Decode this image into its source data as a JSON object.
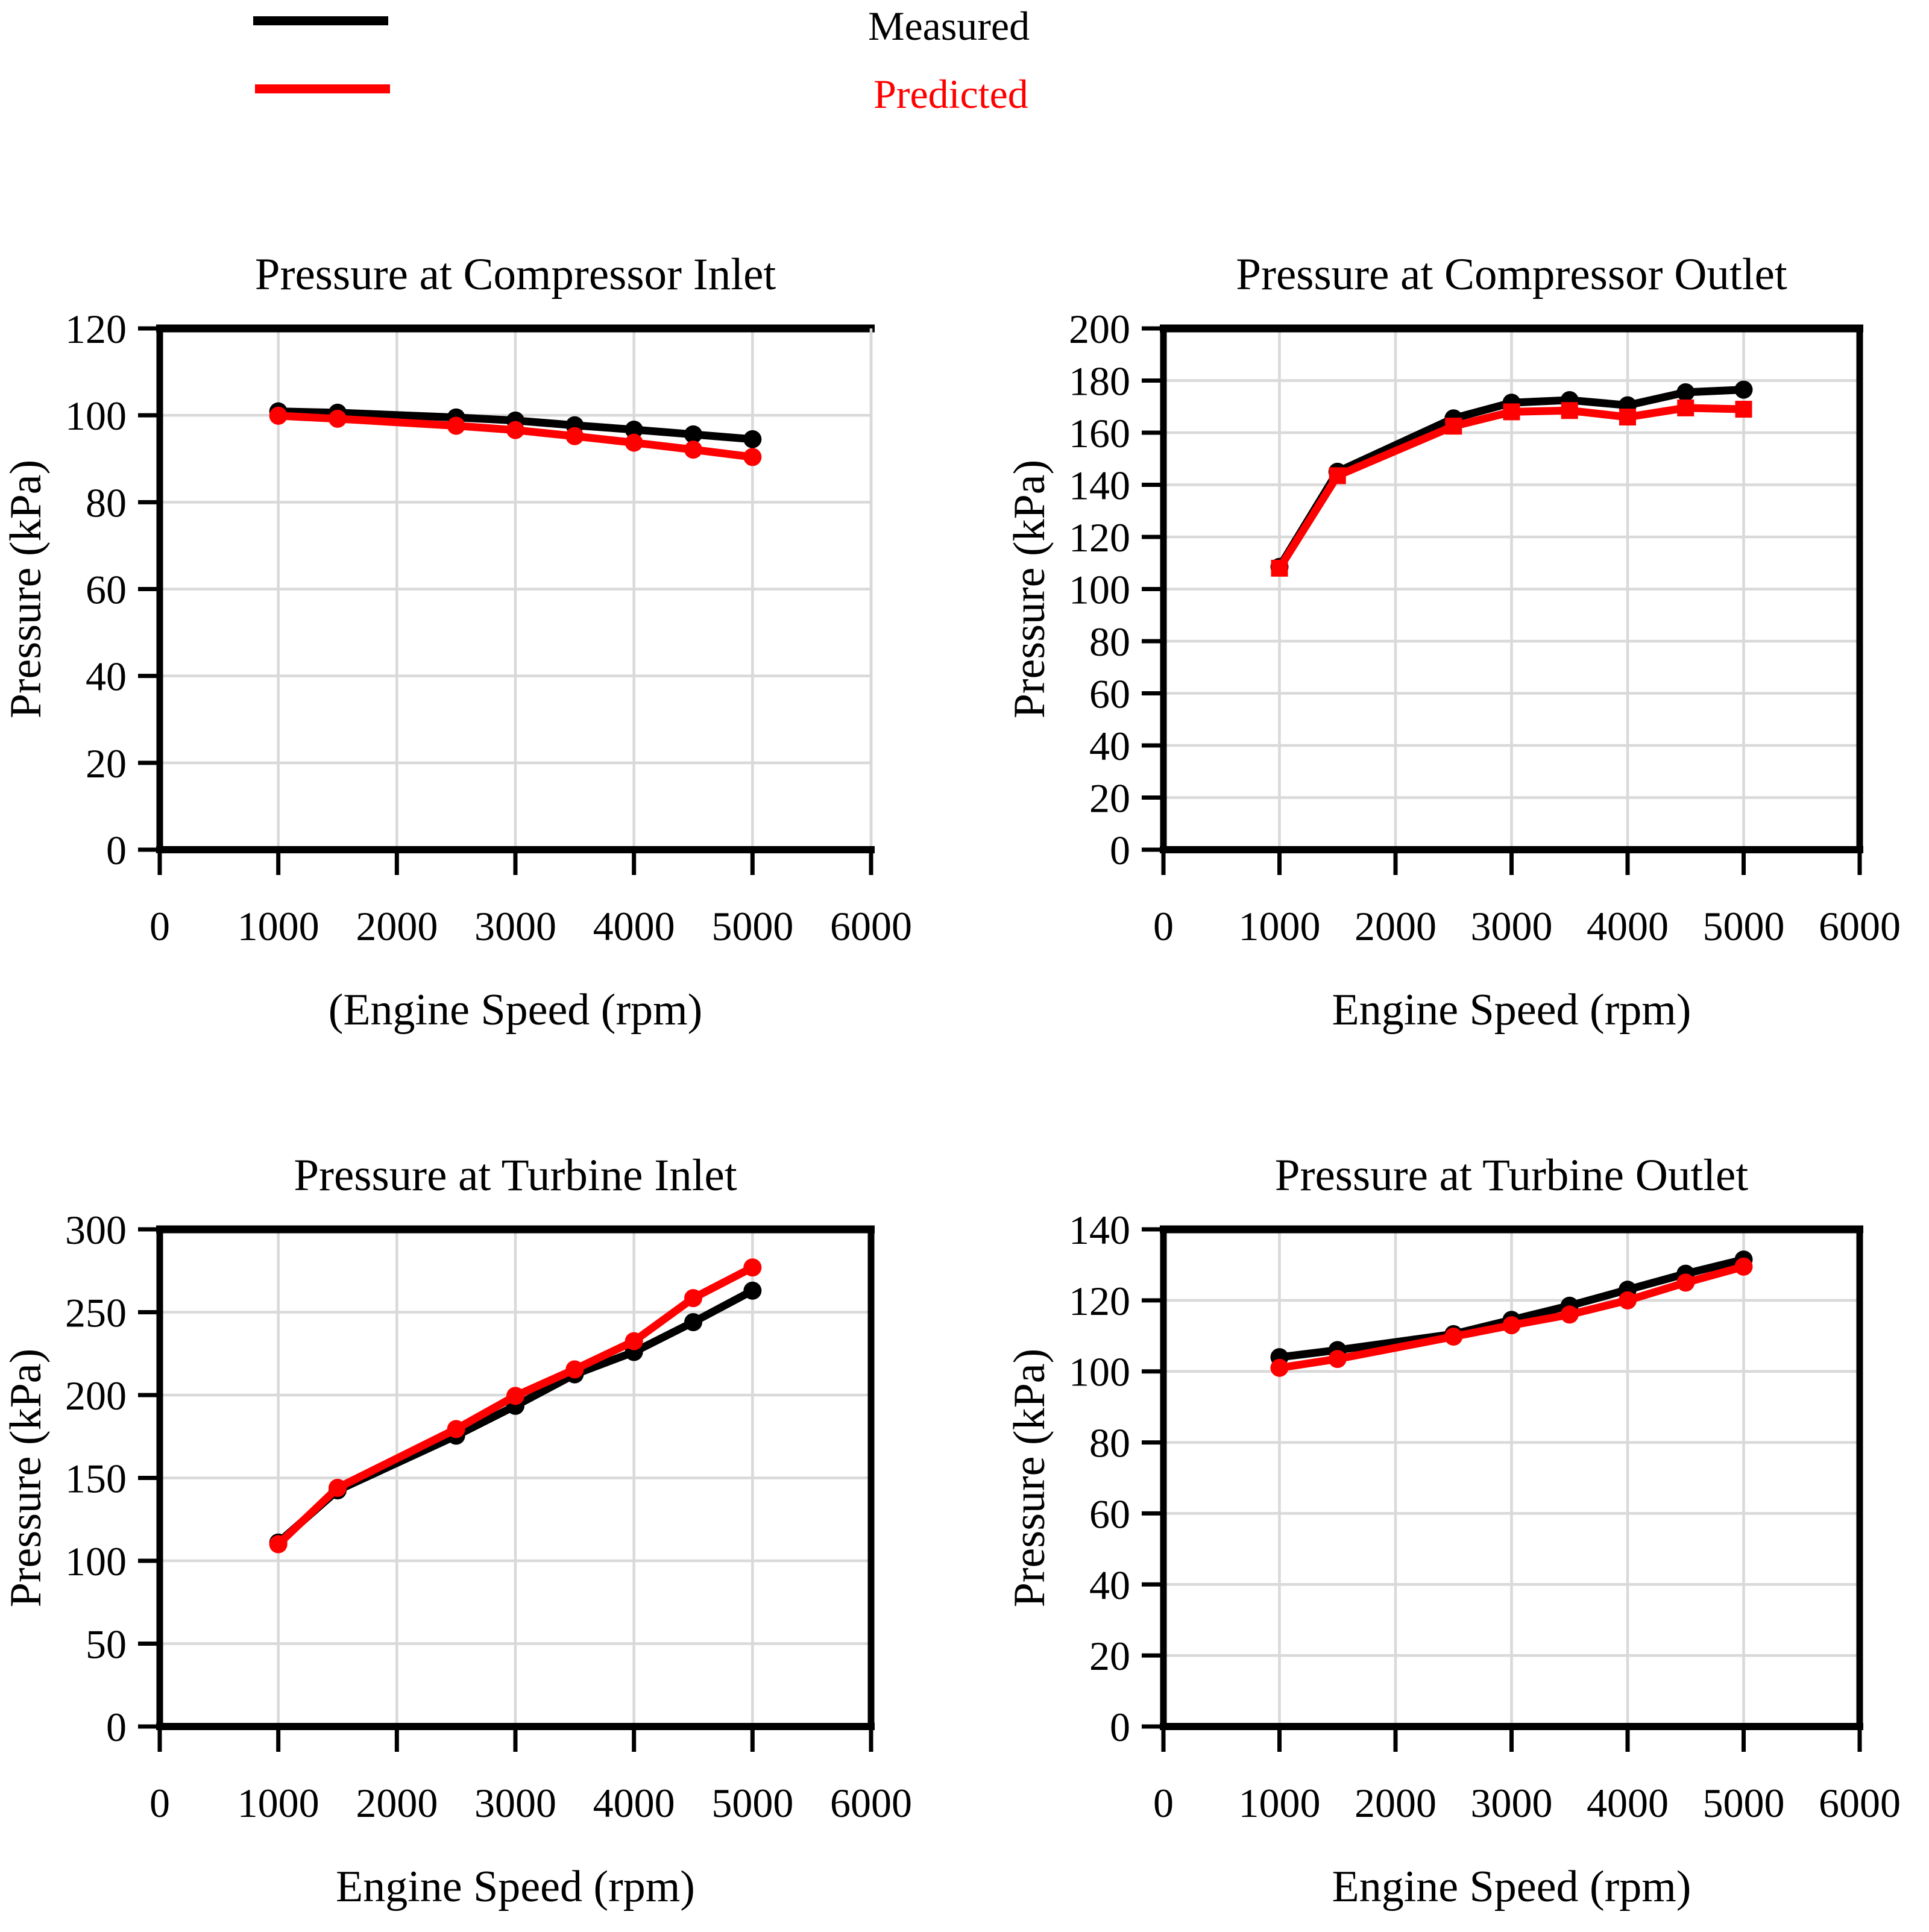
{
  "figure": {
    "background": "#FFFFFF",
    "grid_color": "#D9D9D9",
    "axis_color": "#000000"
  },
  "legend": {
    "items": [
      {
        "name": "measured",
        "label": "Measured",
        "color": "#000000"
      },
      {
        "name": "predicted",
        "label": "Predicted",
        "color": "#FF0000"
      }
    ]
  },
  "chart_data": [
    {
      "type": "line",
      "title": "Pressure at Compressor Inlet",
      "xlabel": "(Engine Speed (rpm)",
      "ylabel": "Pressure (kPa)",
      "xlim": [
        0,
        6000
      ],
      "xticks": [
        0,
        1000,
        2000,
        3000,
        4000,
        5000,
        6000
      ],
      "ylim": [
        0,
        120
      ],
      "yticks": [
        0,
        20,
        40,
        60,
        80,
        100,
        120
      ],
      "grid": true,
      "legend_position": "none",
      "right_border": "gridline",
      "x": [
        1000,
        1500,
        2500,
        3000,
        3500,
        4000,
        4500,
        5000
      ],
      "series": [
        {
          "name": "Measured",
          "color": "#000000",
          "marker": "circle",
          "values": [
            100.9,
            100.6,
            99.5,
            98.8,
            97.7,
            96.7,
            95.6,
            94.5
          ]
        },
        {
          "name": "Predicted",
          "color": "#FF0000",
          "marker": "circle",
          "values": [
            99.9,
            99.2,
            97.6,
            96.6,
            95.2,
            93.7,
            92.1,
            90.4
          ]
        }
      ]
    },
    {
      "type": "line",
      "title": "Pressure at Compressor Outlet",
      "xlabel": "Engine Speed (rpm)",
      "ylabel": "Pressure (kPa)",
      "xlim": [
        0,
        6000
      ],
      "xticks": [
        0,
        1000,
        2000,
        3000,
        4000,
        5000,
        6000
      ],
      "ylim": [
        0,
        200
      ],
      "yticks": [
        0,
        20,
        40,
        60,
        80,
        100,
        120,
        140,
        160,
        180,
        200
      ],
      "grid": true,
      "legend_position": "none",
      "right_border": "axis",
      "x": [
        1000,
        1500,
        2500,
        3000,
        3500,
        4000,
        4500,
        5000
      ],
      "series": [
        {
          "name": "Measured",
          "color": "#000000",
          "marker": "circle",
          "values": [
            108.5,
            145,
            165.5,
            171.5,
            172.5,
            170.5,
            175.5,
            176.5
          ]
        },
        {
          "name": "Predicted",
          "color": "#FF0000",
          "marker": "square",
          "values": [
            108,
            143.5,
            162.5,
            168,
            168.5,
            166,
            169.5,
            169
          ]
        }
      ]
    },
    {
      "type": "line",
      "title": "Pressure at Turbine Inlet",
      "xlabel": "Engine Speed (rpm)",
      "ylabel": "Pressure (kPa)",
      "xlim": [
        0,
        6000
      ],
      "xticks": [
        0,
        1000,
        2000,
        3000,
        4000,
        5000,
        6000
      ],
      "ylim": [
        0,
        300
      ],
      "yticks": [
        0,
        50,
        100,
        150,
        200,
        250,
        300
      ],
      "grid": true,
      "legend_position": "none",
      "right_border": "axis",
      "x": [
        1000,
        1500,
        2500,
        3000,
        3500,
        4000,
        4500,
        5000
      ],
      "series": [
        {
          "name": "Measured",
          "color": "#000000",
          "marker": "circle",
          "values": [
            111,
            142.5,
            175.5,
            193.5,
            212.5,
            226,
            244,
            263
          ]
        },
        {
          "name": "Predicted",
          "color": "#FF0000",
          "marker": "circle",
          "values": [
            110,
            144,
            179.5,
            199.5,
            215.5,
            232.5,
            258.5,
            277
          ]
        }
      ]
    },
    {
      "type": "line",
      "title": "Pressure at Turbine Outlet",
      "xlabel": "Engine Speed (rpm)",
      "ylabel": "Pressure (kPa)",
      "xlim": [
        0,
        6000
      ],
      "xticks": [
        0,
        1000,
        2000,
        3000,
        4000,
        5000,
        6000
      ],
      "ylim": [
        0,
        140
      ],
      "yticks": [
        0,
        20,
        40,
        60,
        80,
        100,
        120,
        140
      ],
      "grid": true,
      "legend_position": "none",
      "right_border": "axis",
      "x": [
        1000,
        1500,
        2500,
        3000,
        3500,
        4000,
        4500,
        5000
      ],
      "series": [
        {
          "name": "Measured",
          "color": "#000000",
          "marker": "circle",
          "values": [
            104,
            106,
            110.5,
            114.5,
            118.5,
            123,
            127.5,
            131.5
          ]
        },
        {
          "name": "Predicted",
          "color": "#FF0000",
          "marker": "circle",
          "values": [
            101,
            103.5,
            109.8,
            113,
            116,
            120,
            125,
            129.5
          ]
        }
      ]
    }
  ]
}
